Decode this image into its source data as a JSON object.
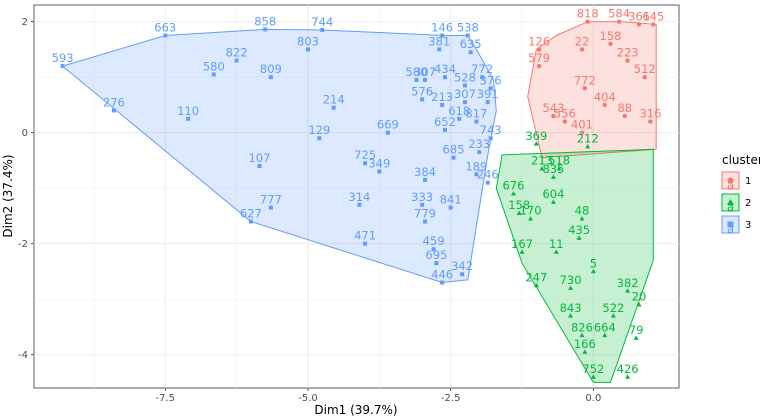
{
  "chart_data": {
    "type": "scatter",
    "title": "",
    "xlabel": "Dim1 (39.7%)",
    "ylabel": "Dim2 (37.4%)",
    "xlim": [
      -9.8,
      1.5
    ],
    "ylim": [
      -4.6,
      2.3
    ],
    "x_ticks": [
      -7.5,
      -5.0,
      -2.5,
      0.0
    ],
    "y_ticks": [
      -4,
      -2,
      0,
      2
    ],
    "x_tick_labels": [
      "-7.5",
      "-5.0",
      "-2.5",
      "0.0"
    ],
    "y_tick_labels": [
      "-4",
      "-2",
      "0",
      "2"
    ],
    "grid": true,
    "legend": {
      "title": "cluster",
      "position": "right",
      "entries": [
        {
          "label": "1",
          "color": "#F8766D",
          "fill": "#F8766D",
          "shape": "circle",
          "glyph": "a"
        },
        {
          "label": "2",
          "color": "#00BA38",
          "fill": "#00BA38",
          "shape": "triangle",
          "glyph": "a"
        },
        {
          "label": "3",
          "color": "#619CFF",
          "fill": "#619CFF",
          "shape": "square",
          "glyph": "a"
        }
      ]
    },
    "hulls": [
      {
        "cluster": "3",
        "color": "#619CFF",
        "points": [
          [
            -9.3,
            1.2
          ],
          [
            -7.5,
            1.75
          ],
          [
            -5.75,
            1.86
          ],
          [
            -4.75,
            1.85
          ],
          [
            -2.6,
            1.75
          ],
          [
            -2.2,
            1.75
          ],
          [
            -2.05,
            1.5
          ],
          [
            -1.75,
            0.95
          ],
          [
            -1.7,
            0.4
          ],
          [
            -1.85,
            -0.4
          ],
          [
            -2.2,
            -2.65
          ],
          [
            -2.65,
            -2.7
          ],
          [
            -6.0,
            -1.6
          ]
        ]
      },
      {
        "cluster": "1",
        "color": "#F8766D",
        "points": [
          [
            -1.0,
            1.5
          ],
          [
            -0.65,
            1.75
          ],
          [
            -0.1,
            2.0
          ],
          [
            0.5,
            2.0
          ],
          [
            1.1,
            1.95
          ],
          [
            1.1,
            -0.3
          ],
          [
            -0.9,
            -0.45
          ],
          [
            -1.15,
            0.65
          ]
        ]
      },
      {
        "cluster": "2",
        "color": "#00BA38",
        "points": [
          [
            -1.6,
            -0.4
          ],
          [
            1.05,
            -0.3
          ],
          [
            1.05,
            -2.3
          ],
          [
            0.3,
            -4.5
          ],
          [
            0.0,
            -4.5
          ],
          [
            -1.25,
            -2.35
          ],
          [
            -1.7,
            -1.0
          ]
        ]
      }
    ],
    "series": [
      {
        "name": "3",
        "color": "#619CFF",
        "shape": "square",
        "points": [
          {
            "label": "593",
            "x": -9.3,
            "y": 1.2
          },
          {
            "label": "663",
            "x": -7.5,
            "y": 1.75
          },
          {
            "label": "858",
            "x": -5.75,
            "y": 1.86
          },
          {
            "label": "744",
            "x": -4.75,
            "y": 1.85
          },
          {
            "label": "146",
            "x": -2.65,
            "y": 1.75
          },
          {
            "label": "538",
            "x": -2.2,
            "y": 1.75
          },
          {
            "label": "822",
            "x": -6.25,
            "y": 1.3
          },
          {
            "label": "803",
            "x": -5.0,
            "y": 1.5
          },
          {
            "label": "381",
            "x": -2.7,
            "y": 1.5
          },
          {
            "label": "635",
            "x": -2.15,
            "y": 1.45
          },
          {
            "label": "580",
            "x": -6.65,
            "y": 1.05
          },
          {
            "label": "809",
            "x": -5.65,
            "y": 1.0
          },
          {
            "label": "276",
            "x": -8.4,
            "y": 0.4
          },
          {
            "label": "110",
            "x": -7.1,
            "y": 0.25
          },
          {
            "label": "214",
            "x": -4.55,
            "y": 0.45
          },
          {
            "label": "580",
            "x": -3.1,
            "y": 0.95
          },
          {
            "label": "307",
            "x": -2.95,
            "y": 0.95
          },
          {
            "label": "434",
            "x": -2.6,
            "y": 1.0
          },
          {
            "label": "772",
            "x": -1.95,
            "y": 1.0
          },
          {
            "label": "528",
            "x": -2.25,
            "y": 0.85
          },
          {
            "label": "376",
            "x": -1.8,
            "y": 0.8
          },
          {
            "label": "576",
            "x": -3.0,
            "y": 0.6
          },
          {
            "label": "213",
            "x": -2.65,
            "y": 0.5
          },
          {
            "label": "307",
            "x": -2.25,
            "y": 0.55
          },
          {
            "label": "391",
            "x": -1.85,
            "y": 0.55
          },
          {
            "label": "129",
            "x": -4.8,
            "y": -0.1
          },
          {
            "label": "618",
            "x": -2.35,
            "y": 0.25
          },
          {
            "label": "817",
            "x": -2.05,
            "y": 0.2
          },
          {
            "label": "107",
            "x": -5.85,
            "y": -0.6
          },
          {
            "label": "725",
            "x": -4.0,
            "y": -0.55
          },
          {
            "label": "669",
            "x": -3.6,
            "y": 0.0
          },
          {
            "label": "652",
            "x": -2.6,
            "y": 0.05
          },
          {
            "label": "349",
            "x": -3.75,
            "y": -0.7
          },
          {
            "label": "743",
            "x": -1.8,
            "y": -0.1
          },
          {
            "label": "233",
            "x": -2.0,
            "y": -0.35
          },
          {
            "label": "685",
            "x": -2.45,
            "y": -0.45
          },
          {
            "label": "384",
            "x": -2.95,
            "y": -0.85
          },
          {
            "label": "189",
            "x": -2.05,
            "y": -0.75
          },
          {
            "label": "246",
            "x": -1.85,
            "y": -0.9
          },
          {
            "label": "777",
            "x": -5.65,
            "y": -1.35
          },
          {
            "label": "314",
            "x": -4.1,
            "y": -1.3
          },
          {
            "label": "333",
            "x": -3.0,
            "y": -1.3
          },
          {
            "label": "841",
            "x": -2.5,
            "y": -1.35
          },
          {
            "label": "627",
            "x": -6.0,
            "y": -1.6
          },
          {
            "label": "779",
            "x": -2.95,
            "y": -1.6
          },
          {
            "label": "471",
            "x": -4.0,
            "y": -2.0
          },
          {
            "label": "459",
            "x": -2.8,
            "y": -2.1
          },
          {
            "label": "695",
            "x": -2.75,
            "y": -2.35
          },
          {
            "label": "342",
            "x": -2.3,
            "y": -2.55
          },
          {
            "label": "446",
            "x": -2.65,
            "y": -2.7
          }
        ]
      },
      {
        "name": "1",
        "color": "#F8766D",
        "shape": "circle",
        "points": [
          {
            "label": "818",
            "x": -0.1,
            "y": 2.0
          },
          {
            "label": "584",
            "x": 0.45,
            "y": 2.0
          },
          {
            "label": "361",
            "x": 0.8,
            "y": 1.95
          },
          {
            "label": "645",
            "x": 1.05,
            "y": 1.95
          },
          {
            "label": "126",
            "x": -0.95,
            "y": 1.5
          },
          {
            "label": "579",
            "x": -0.95,
            "y": 1.2
          },
          {
            "label": "22",
            "x": -0.2,
            "y": 1.5
          },
          {
            "label": "543",
            "x": -0.7,
            "y": 0.3
          },
          {
            "label": "556",
            "x": -0.5,
            "y": 0.2
          },
          {
            "label": "401",
            "x": -0.2,
            "y": 0.0
          },
          {
            "label": "772",
            "x": -0.15,
            "y": 0.8
          },
          {
            "label": "158",
            "x": 0.3,
            "y": 1.6
          },
          {
            "label": "223",
            "x": 0.6,
            "y": 1.3
          },
          {
            "label": "404",
            "x": 0.2,
            "y": 0.5
          },
          {
            "label": "512",
            "x": 0.9,
            "y": 1.0
          },
          {
            "label": "88",
            "x": 0.55,
            "y": 0.3
          },
          {
            "label": "316",
            "x": 1.0,
            "y": 0.2
          }
        ]
      },
      {
        "name": "2",
        "color": "#00BA38",
        "shape": "triangle",
        "points": [
          {
            "label": "369",
            "x": -1.0,
            "y": -0.2
          },
          {
            "label": "212",
            "x": -0.1,
            "y": -0.25
          },
          {
            "label": "213",
            "x": -0.9,
            "y": -0.65
          },
          {
            "label": "518",
            "x": -0.6,
            "y": -0.65
          },
          {
            "label": "835",
            "x": -0.7,
            "y": -0.8
          },
          {
            "label": "676",
            "x": -1.4,
            "y": -1.1
          },
          {
            "label": "604",
            "x": -0.7,
            "y": -1.25
          },
          {
            "label": "158",
            "x": -1.3,
            "y": -1.45
          },
          {
            "label": "170",
            "x": -1.1,
            "y": -1.55
          },
          {
            "label": "167",
            "x": -1.25,
            "y": -2.15
          },
          {
            "label": "11",
            "x": -0.65,
            "y": -2.15
          },
          {
            "label": "48",
            "x": -0.2,
            "y": -1.55
          },
          {
            "label": "435",
            "x": -0.25,
            "y": -1.9
          },
          {
            "label": "247",
            "x": -1.0,
            "y": -2.75
          },
          {
            "label": "730",
            "x": -0.4,
            "y": -2.8
          },
          {
            "label": "843",
            "x": -0.4,
            "y": -3.3
          },
          {
            "label": "522",
            "x": 0.35,
            "y": -3.3
          },
          {
            "label": "826",
            "x": -0.2,
            "y": -3.65
          },
          {
            "label": "664",
            "x": 0.2,
            "y": -3.65
          },
          {
            "label": "166",
            "x": -0.15,
            "y": -3.95
          },
          {
            "label": "752",
            "x": 0.0,
            "y": -4.4
          },
          {
            "label": "426",
            "x": 0.6,
            "y": -4.4
          },
          {
            "label": "382",
            "x": 0.6,
            "y": -2.85
          },
          {
            "label": "20",
            "x": 0.8,
            "y": -3.1
          },
          {
            "label": "79",
            "x": 0.75,
            "y": -3.7
          },
          {
            "label": "5",
            "x": 0.0,
            "y": -2.5
          }
        ]
      }
    ]
  }
}
